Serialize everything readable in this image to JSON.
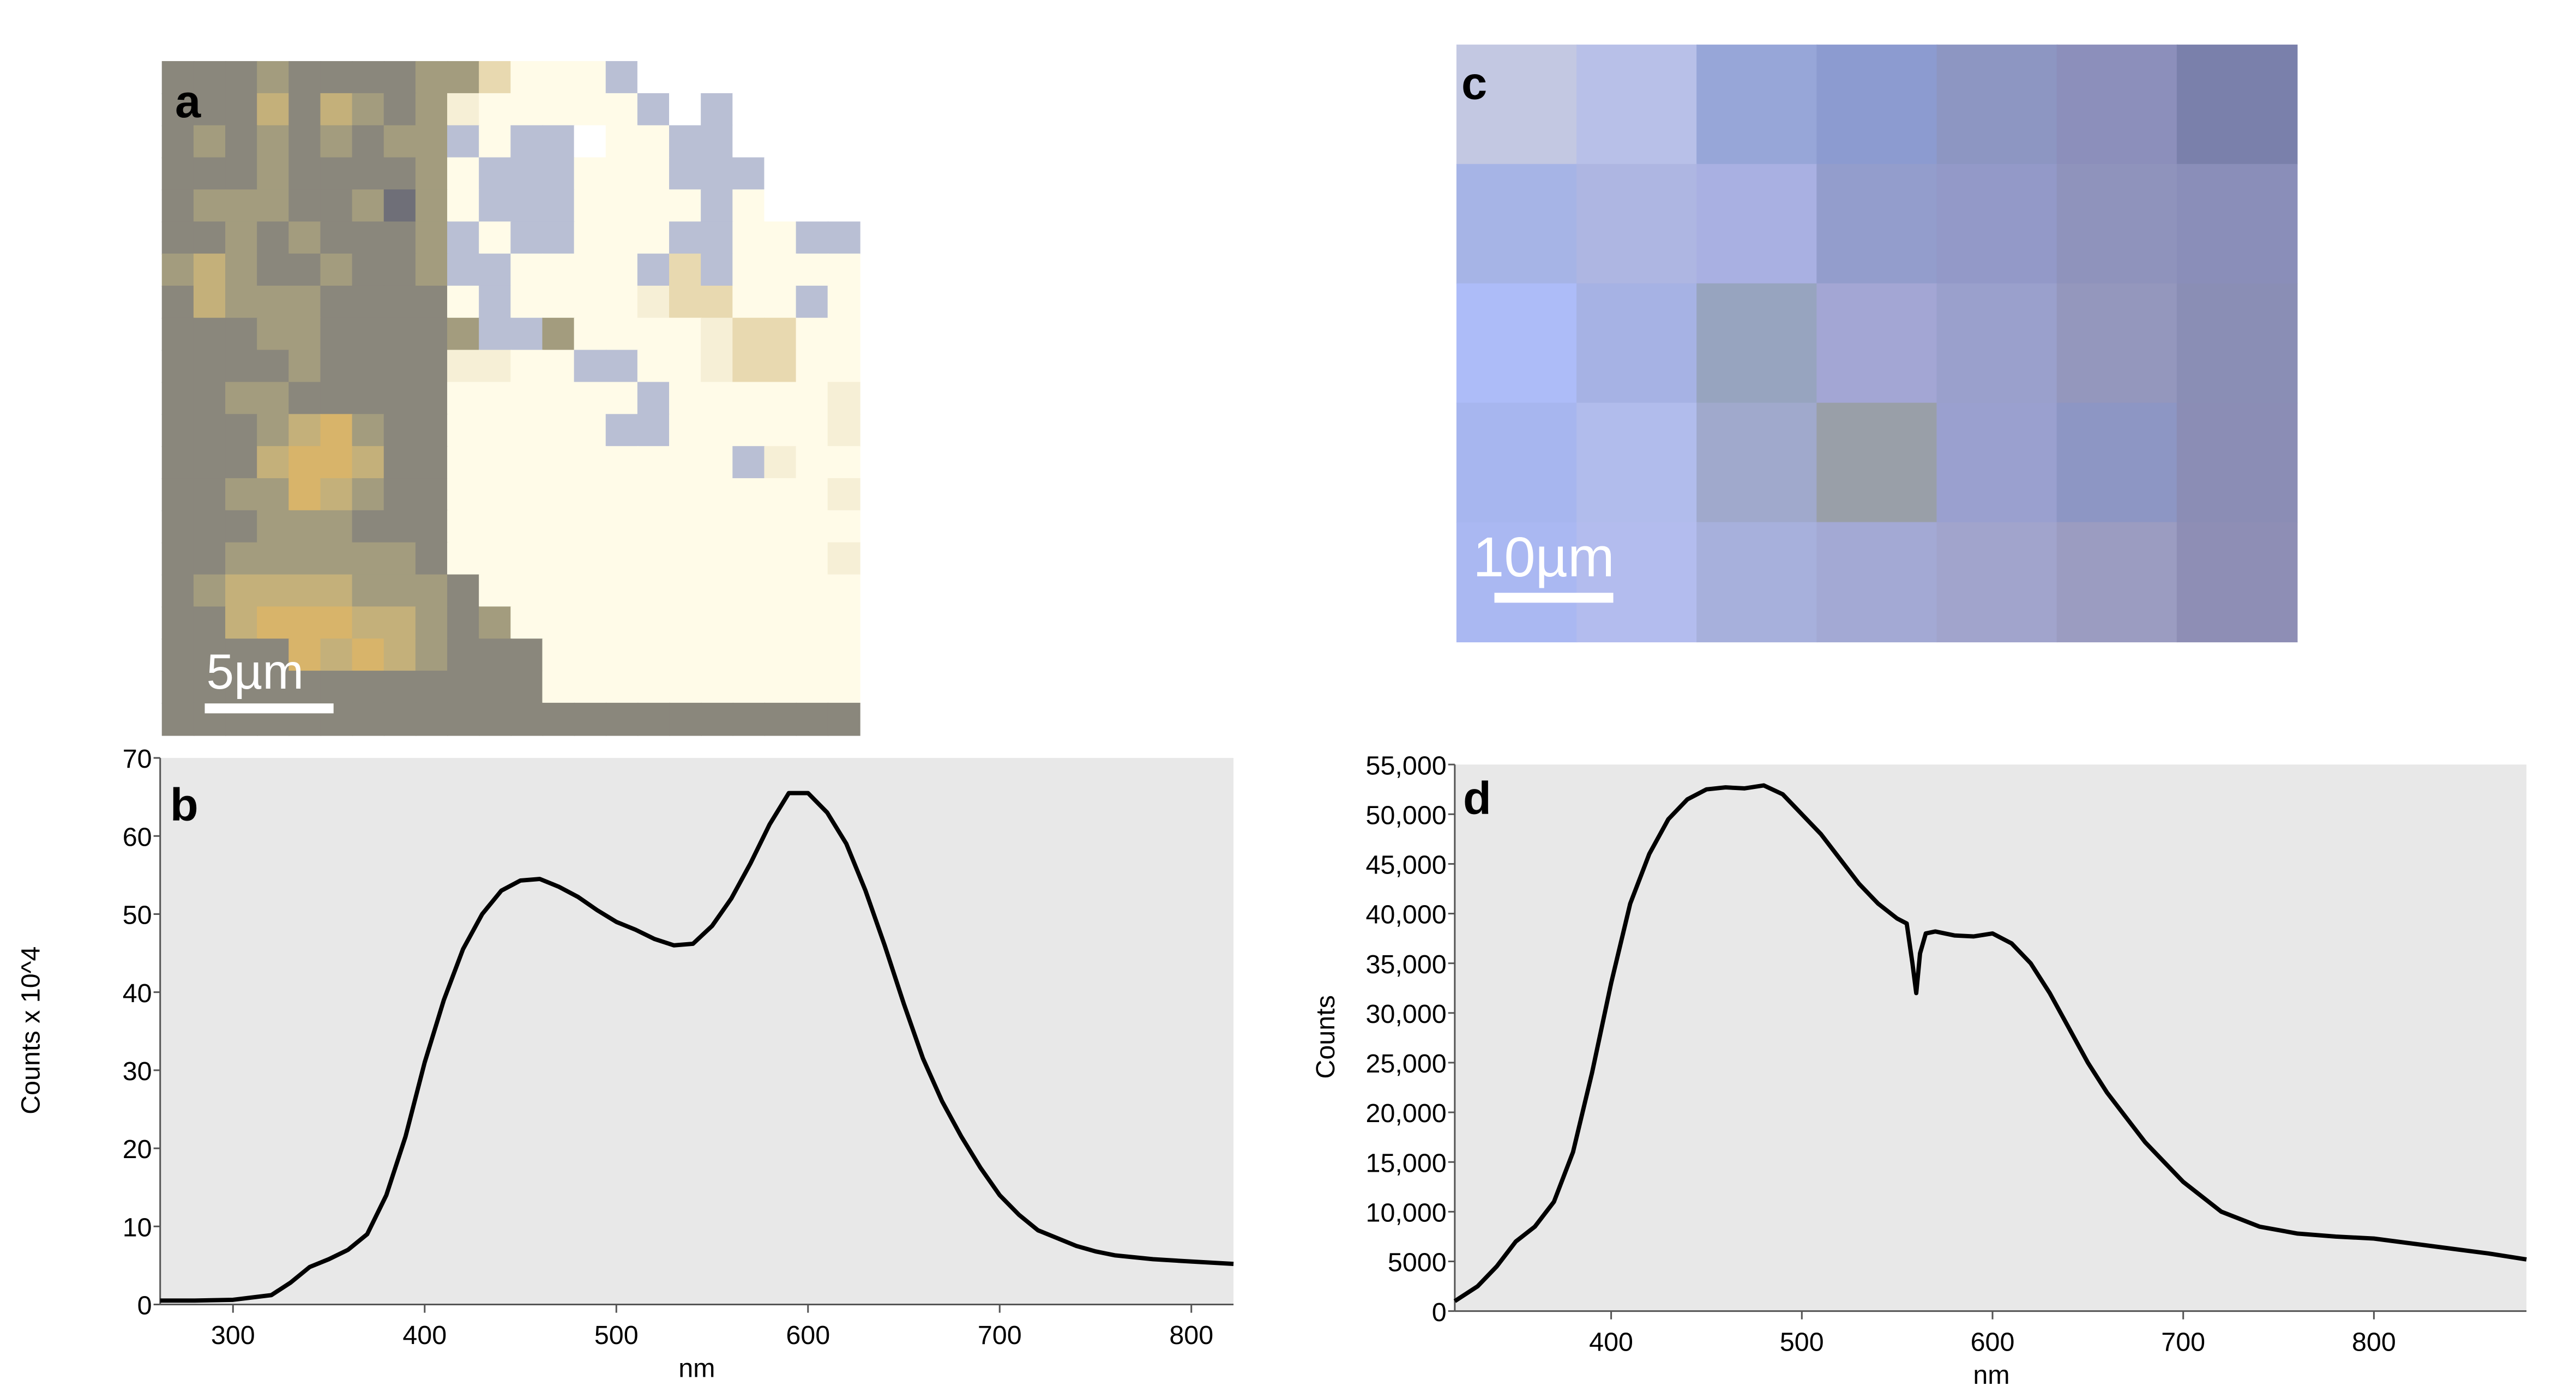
{
  "panel_a": {
    "label": "a",
    "scale_bar_text": "5µm",
    "palette": [
      "#6f6f78",
      "#8a877c",
      "#a39c7e",
      "#c4b07a",
      "#d8b46a",
      "#e8d9b0",
      "#f6efd6",
      "#fffbe8",
      "#b9bfd4",
      "#ffffff"
    ],
    "pixels": [
      "1112111122577789999999",
      "1113132126777778989999",
      "1212121228788977889999",
      "1112111127888777888999",
      "1222112027888777787999",
      "1121211128788777887788",
      "2321121128877778587777",
      "1322211117877776557787",
      "1112211112882777765577",
      "1111211116677887765577",
      "1122111117777778777776",
      "1112342117777788777776",
      "1113443117777777778677",
      "1122432117777777777776",
      "1112221117777777777777",
      "1122222217777777777776",
      "1233332221777777777777",
      "1134443321277777777777",
      "1111434321117777777777",
      "1111111111117777777777",
      "1111111111111111111111"
    ]
  },
  "panel_c": {
    "label": "c",
    "scale_bar_text": "10µm",
    "cells": [
      [
        "#c3c8e2",
        "#b8c0e8",
        "#97a6d8",
        "#8c9bd0",
        "#8d96c2",
        "#8c8fbb",
        "#7a80ab"
      ],
      [
        "#a6b4e6",
        "#aeb6e2",
        "#a9b0e2",
        "#939dcc",
        "#9399c8",
        "#8f93bc",
        "#8a8eb9"
      ],
      [
        "#adbcf8",
        "#a6b2e4",
        "#97a4bf",
        "#a3a6d4",
        "#9aa0cc",
        "#9497bd",
        "#8a8eb5"
      ],
      [
        "#a7b6ef",
        "#b1bcec",
        "#a0a9cc",
        "#999fa8",
        "#9aa0cf",
        "#8d96c4",
        "#8b8db5"
      ],
      [
        "#aab8f2",
        "#b3bcee",
        "#a7b0dc",
        "#a3a9d4",
        "#a1a4cc",
        "#9b9cc1",
        "#8e8eb5"
      ]
    ]
  },
  "chart_data": [
    {
      "type": "line",
      "panel_label": "b",
      "xlabel": "nm",
      "ylabel": "Counts x 10^4",
      "xlim": [
        262,
        822
      ],
      "ylim": [
        0,
        70
      ],
      "xticks": [
        300,
        400,
        500,
        600,
        700,
        800
      ],
      "xtick_labels": [
        "300",
        "400",
        "500",
        "600",
        "700",
        "800"
      ],
      "yticks": [
        0,
        10,
        20,
        30,
        40,
        50,
        60,
        70
      ],
      "ytick_labels": [
        "0",
        "10",
        "20",
        "30",
        "40",
        "50",
        "60",
        "70"
      ],
      "grid": false,
      "background": "#e8e8e8",
      "line_color": "#000000",
      "x": [
        262,
        280,
        300,
        320,
        330,
        340,
        350,
        360,
        370,
        380,
        390,
        400,
        410,
        420,
        430,
        440,
        450,
        460,
        470,
        480,
        490,
        500,
        510,
        520,
        530,
        540,
        550,
        560,
        570,
        580,
        590,
        600,
        610,
        620,
        630,
        640,
        650,
        660,
        670,
        680,
        690,
        700,
        710,
        720,
        730,
        740,
        750,
        760,
        780,
        800,
        822
      ],
      "y": [
        0.5,
        0.5,
        0.6,
        1.2,
        2.8,
        4.8,
        5.8,
        7.0,
        9.0,
        14.0,
        21.5,
        31.0,
        39.0,
        45.5,
        50.0,
        53.0,
        54.3,
        54.5,
        53.5,
        52.2,
        50.5,
        49.0,
        48.0,
        46.8,
        46.0,
        46.2,
        48.5,
        52.0,
        56.5,
        61.5,
        65.5,
        65.5,
        63.0,
        59.0,
        53.0,
        46.0,
        38.5,
        31.5,
        26.0,
        21.5,
        17.5,
        14.0,
        11.5,
        9.5,
        8.5,
        7.5,
        6.8,
        6.3,
        5.8,
        5.5,
        5.2
      ]
    },
    {
      "type": "line",
      "panel_label": "d",
      "xlabel": "nm",
      "ylabel": "Counts",
      "xlim": [
        318,
        880
      ],
      "ylim": [
        0,
        55000
      ],
      "xticks": [
        400,
        500,
        600,
        700,
        800
      ],
      "xtick_labels": [
        "400",
        "500",
        "600",
        "700",
        "800"
      ],
      "yticks": [
        0,
        5000,
        10000,
        15000,
        20000,
        25000,
        30000,
        35000,
        40000,
        45000,
        50000,
        55000
      ],
      "ytick_labels": [
        "0",
        "5000",
        "10,000",
        "15,000",
        "20,000",
        "25,000",
        "30,000",
        "35,000",
        "40,000",
        "45,000",
        "50,000",
        "55,000"
      ],
      "grid": false,
      "background": "#e8e8e8",
      "line_color": "#000000",
      "x": [
        318,
        330,
        340,
        350,
        360,
        370,
        380,
        390,
        400,
        410,
        420,
        430,
        440,
        450,
        460,
        470,
        480,
        490,
        500,
        510,
        520,
        530,
        540,
        550,
        555,
        558,
        560,
        562,
        565,
        570,
        580,
        590,
        600,
        610,
        620,
        630,
        640,
        650,
        660,
        670,
        680,
        690,
        700,
        710,
        720,
        740,
        760,
        780,
        800,
        820,
        840,
        860,
        880
      ],
      "y": [
        1000,
        2500,
        4500,
        7000,
        8500,
        11000,
        16000,
        24000,
        33000,
        41000,
        46000,
        49500,
        51500,
        52500,
        52700,
        52600,
        52900,
        52000,
        50000,
        48000,
        45500,
        43000,
        41000,
        39500,
        39000,
        35000,
        32000,
        36000,
        38000,
        38200,
        37800,
        37700,
        38000,
        37000,
        35000,
        32000,
        28500,
        25000,
        22000,
        19500,
        17000,
        15000,
        13000,
        11500,
        10000,
        8500,
        7800,
        7500,
        7300,
        6800,
        6300,
        5800,
        5200
      ]
    }
  ]
}
